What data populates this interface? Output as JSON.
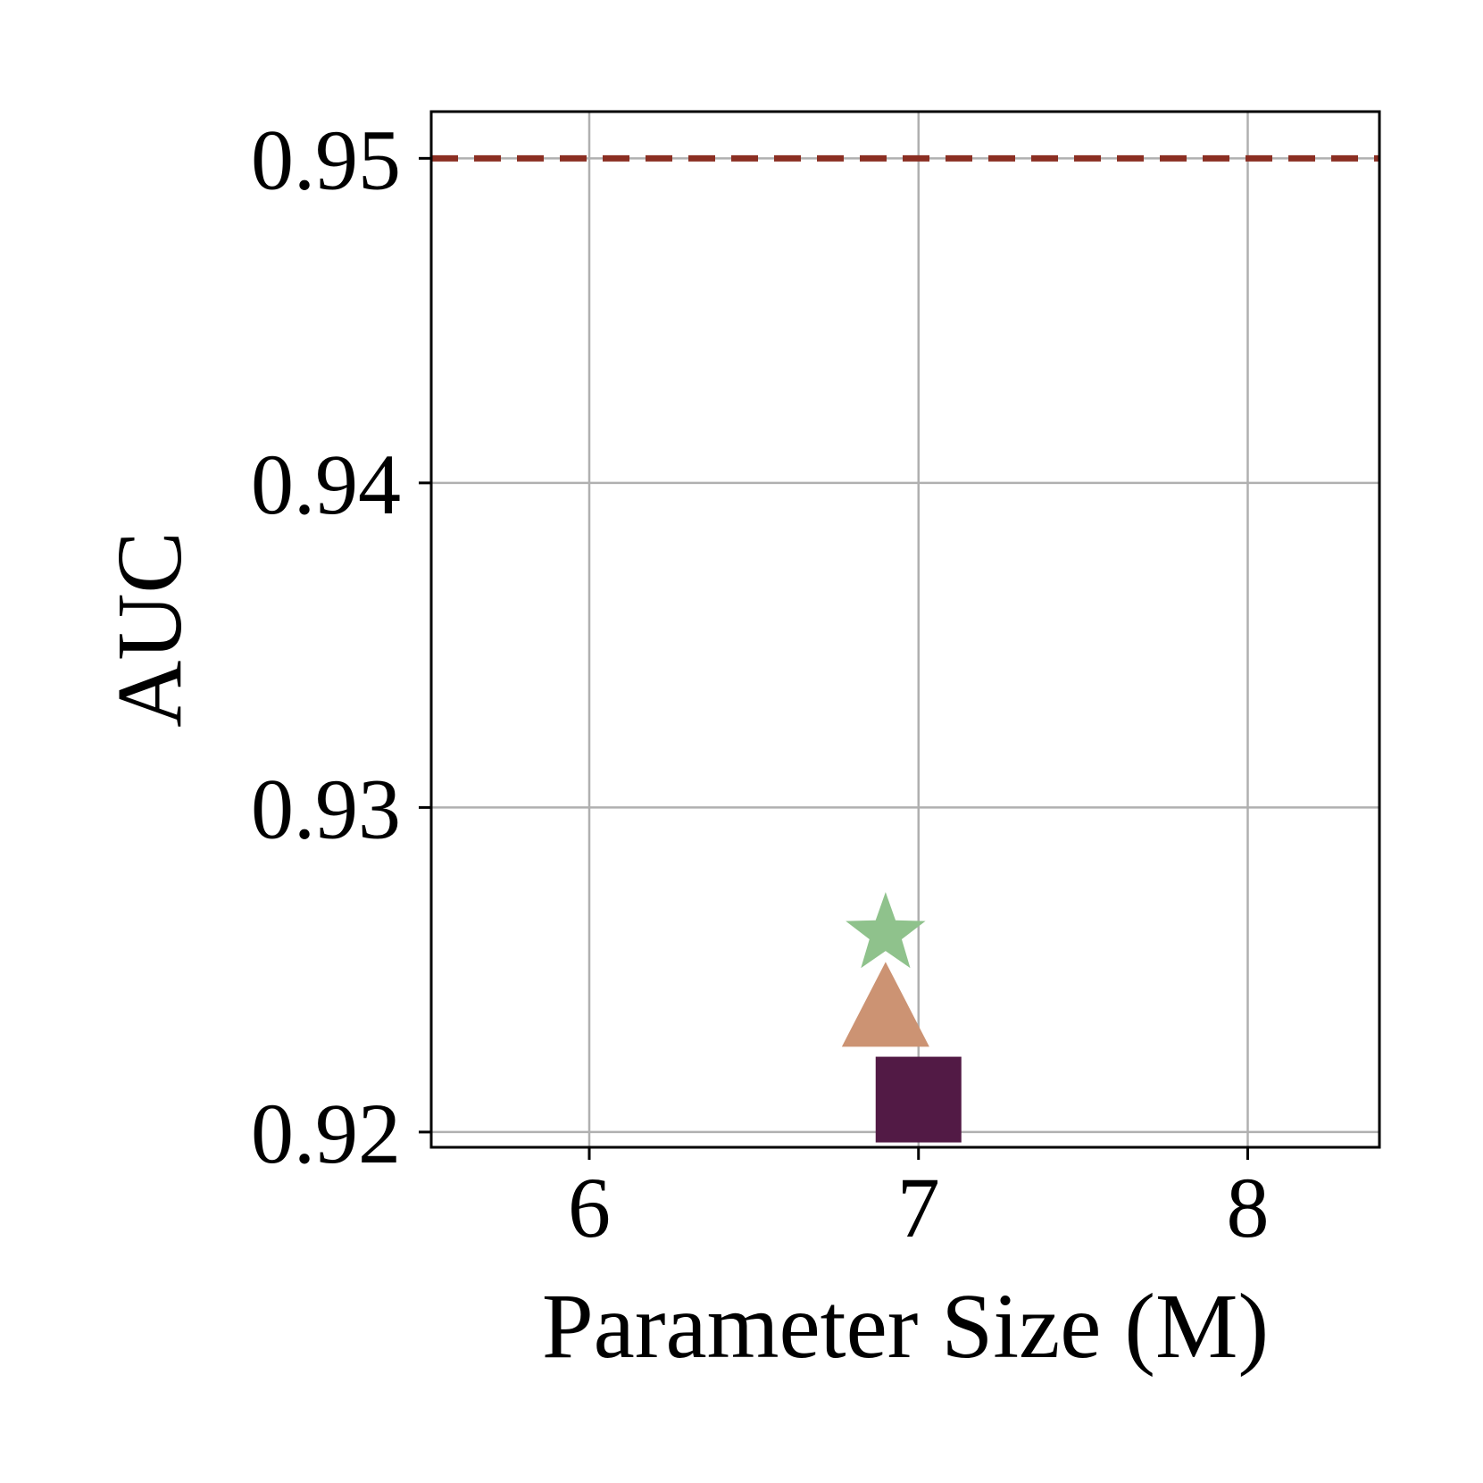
{
  "chart_data": {
    "type": "scatter",
    "xlabel": "Parameter Size (M)",
    "ylabel": "AUC",
    "xlim": [
      5.52,
      8.4
    ],
    "ylim": [
      0.91953,
      0.95144
    ],
    "x_ticks": [
      6,
      7,
      8
    ],
    "x_tick_labels": [
      "6",
      "7",
      "8"
    ],
    "y_ticks": [
      0.92,
      0.93,
      0.94,
      0.95
    ],
    "y_tick_labels": [
      "0.92",
      "0.93",
      "0.94",
      "0.95"
    ],
    "grid": true,
    "legend": "none",
    "reference_line": {
      "y": 0.95,
      "style": "dashed",
      "color": "#8B2E22"
    },
    "points": [
      {
        "x": 7.0,
        "y": 0.921,
        "marker": "square",
        "color": "#521A45"
      },
      {
        "x": 6.9,
        "y": 0.9235,
        "marker": "triangle",
        "color": "#CC9373"
      },
      {
        "x": 6.9,
        "y": 0.9261,
        "marker": "star",
        "color": "#8FC28C"
      }
    ]
  }
}
